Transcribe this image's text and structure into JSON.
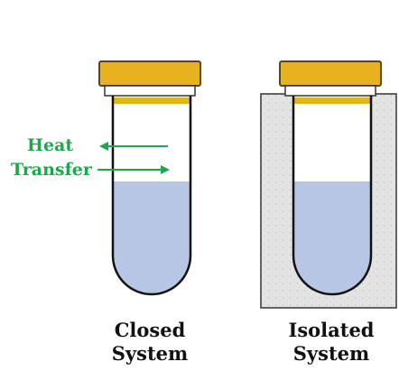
{
  "diagram": {
    "heat_label_line1": "Heat",
    "heat_label_line2": "Transfer",
    "closed": {
      "line1": "Closed",
      "line2": "System"
    },
    "isolated": {
      "line1": "Isolated",
      "line2": "System"
    }
  },
  "colors": {
    "cap_fill": "#e6b21e",
    "cap_stroke": "#5a4612",
    "liquid": "#b8c6e6",
    "insulation": "#e6e6e6",
    "arrow": "#1aa84e",
    "outline": "#111111"
  }
}
